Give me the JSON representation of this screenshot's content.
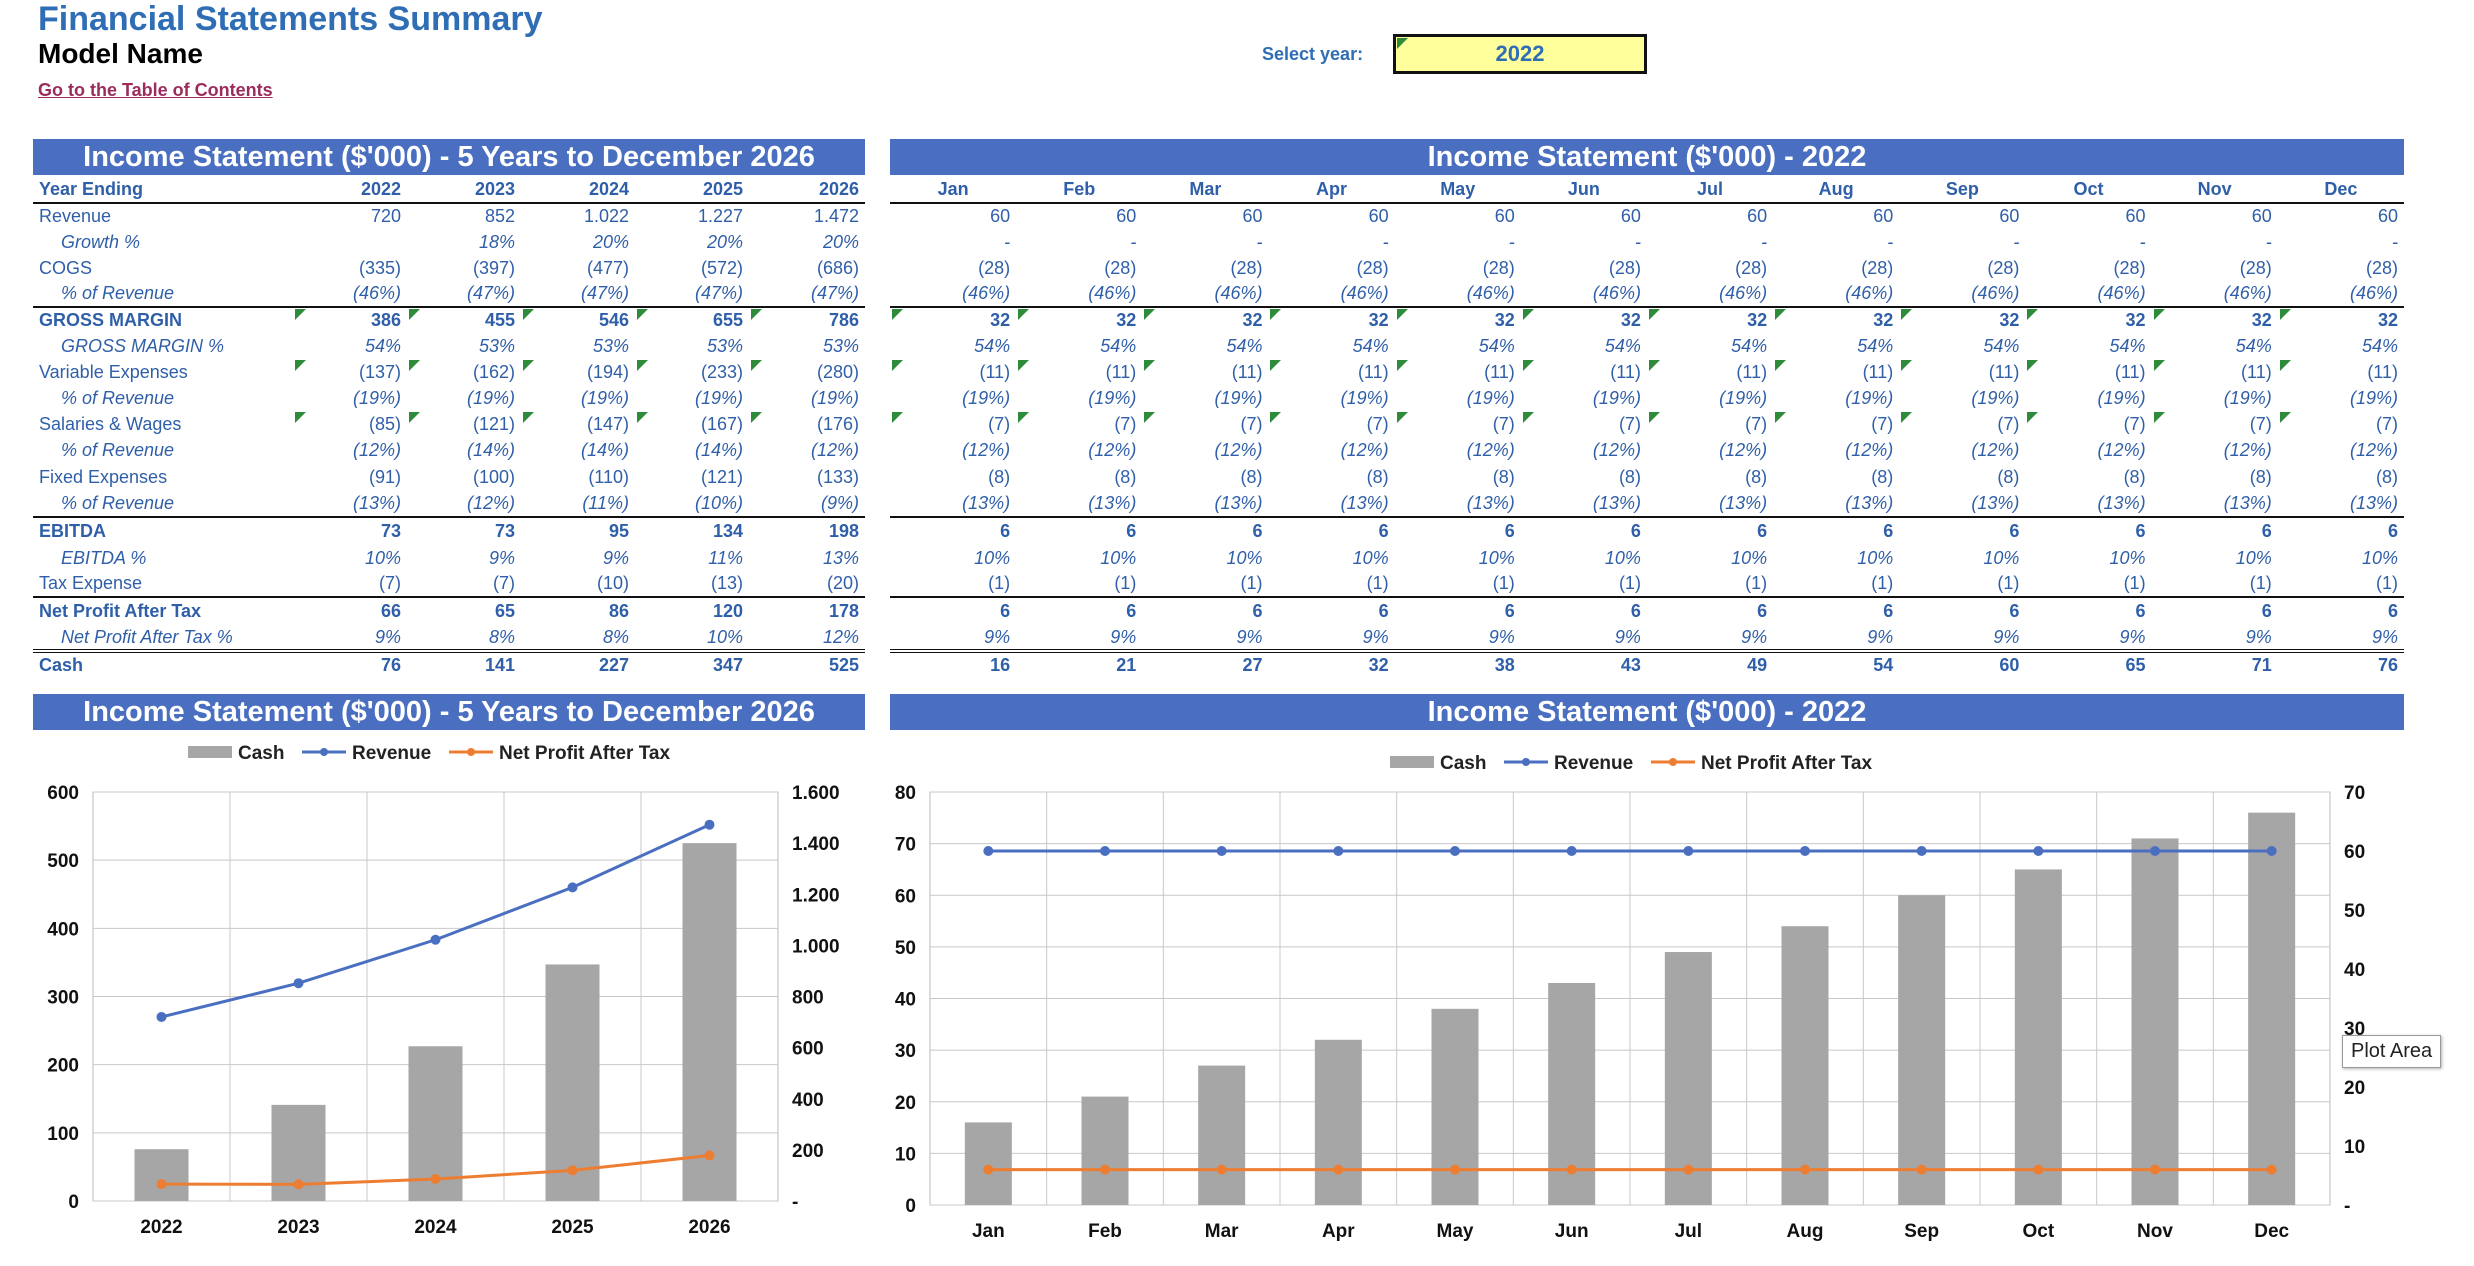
{
  "header": {
    "title": "Financial Statements Summary",
    "model_name": "Model Name",
    "toc_link": "Go to the Table of Contents",
    "year_label": "Select year:",
    "year_value": "2022"
  },
  "annual_table": {
    "title": "Income Statement ($'000) - 5 Years to December 2026",
    "columns": [
      "Year Ending",
      "2022",
      "2023",
      "2024",
      "2025",
      "2026"
    ],
    "rows": [
      {
        "label": "Revenue",
        "values": [
          "720",
          "852",
          "1.022",
          "1.227",
          "1.472"
        ],
        "style": "normal"
      },
      {
        "label": "Growth %",
        "values": [
          "",
          "18%",
          "20%",
          "20%",
          "20%"
        ],
        "style": "ital"
      },
      {
        "label": "COGS",
        "values": [
          "(335)",
          "(397)",
          "(477)",
          "(572)",
          "(686)"
        ],
        "style": "normal"
      },
      {
        "label": "% of Revenue",
        "values": [
          "(46%)",
          "(47%)",
          "(47%)",
          "(47%)",
          "(47%)"
        ],
        "style": "ital"
      },
      {
        "label": "GROSS MARGIN",
        "values": [
          "386",
          "455",
          "546",
          "655",
          "786"
        ],
        "style": "bold topline",
        "tri": true
      },
      {
        "label": "GROSS MARGIN %",
        "values": [
          "54%",
          "53%",
          "53%",
          "53%",
          "53%"
        ],
        "style": "ital"
      },
      {
        "label": "Variable Expenses",
        "values": [
          "(137)",
          "(162)",
          "(194)",
          "(233)",
          "(280)"
        ],
        "style": "normal",
        "tri": true
      },
      {
        "label": "% of Revenue",
        "values": [
          "(19%)",
          "(19%)",
          "(19%)",
          "(19%)",
          "(19%)"
        ],
        "style": "ital"
      },
      {
        "label": "Salaries & Wages",
        "values": [
          "(85)",
          "(121)",
          "(147)",
          "(167)",
          "(176)"
        ],
        "style": "normal",
        "tri": true
      },
      {
        "label": "% of Revenue",
        "values": [
          "(12%)",
          "(14%)",
          "(14%)",
          "(14%)",
          "(12%)"
        ],
        "style": "ital"
      },
      {
        "label": "Fixed Expenses",
        "values": [
          "(91)",
          "(100)",
          "(110)",
          "(121)",
          "(133)"
        ],
        "style": "normal tall"
      },
      {
        "label": "% of Revenue",
        "values": [
          "(13%)",
          "(12%)",
          "(11%)",
          "(10%)",
          "(9%)"
        ],
        "style": "ital"
      },
      {
        "label": "EBITDA",
        "values": [
          "73",
          "73",
          "95",
          "134",
          "198"
        ],
        "style": "bold topline tall"
      },
      {
        "label": "EBITDA %",
        "values": [
          "10%",
          "9%",
          "9%",
          "11%",
          "13%"
        ],
        "style": "ital"
      },
      {
        "label": "Tax Expense",
        "values": [
          "(7)",
          "(7)",
          "(10)",
          "(13)",
          "(20)"
        ],
        "style": "normal"
      },
      {
        "label": "Net Profit After Tax",
        "values": [
          "66",
          "65",
          "86",
          "120",
          "178"
        ],
        "style": "bold topline tall"
      },
      {
        "label": "Net Profit After Tax %",
        "values": [
          "9%",
          "8%",
          "8%",
          "10%",
          "12%"
        ],
        "style": "ital dbl"
      },
      {
        "label": "Cash",
        "values": [
          "76",
          "141",
          "227",
          "347",
          "525"
        ],
        "style": "bold"
      }
    ]
  },
  "monthly_table": {
    "title": "Income Statement ($'000) - 2022",
    "columns": [
      "Jan",
      "Feb",
      "Mar",
      "Apr",
      "May",
      "Jun",
      "Jul",
      "Aug",
      "Sep",
      "Oct",
      "Nov",
      "Dec"
    ],
    "rows": [
      {
        "value": "60",
        "style": "normal"
      },
      {
        "value": "-",
        "style": "ital"
      },
      {
        "value": "(28)",
        "style": "normal"
      },
      {
        "value": "(46%)",
        "style": "ital"
      },
      {
        "value": "32",
        "style": "bold topline",
        "tri": true
      },
      {
        "value": "54%",
        "style": "ital"
      },
      {
        "value": "(11)",
        "style": "normal",
        "tri": true
      },
      {
        "value": "(19%)",
        "style": "ital"
      },
      {
        "value": "(7)",
        "style": "normal",
        "tri": true
      },
      {
        "value": "(12%)",
        "style": "ital"
      },
      {
        "value": "(8)",
        "style": "normal tall"
      },
      {
        "value": "(13%)",
        "style": "ital"
      },
      {
        "value": "6",
        "style": "bold topline tall"
      },
      {
        "value": "10%",
        "style": "ital"
      },
      {
        "value": "(1)",
        "style": "normal"
      },
      {
        "value": "6",
        "style": "bold topline tall"
      },
      {
        "value": "9%",
        "style": "ital dbl"
      },
      {
        "cash": [
          "16",
          "21",
          "27",
          "32",
          "38",
          "43",
          "49",
          "54",
          "60",
          "65",
          "71",
          "76"
        ],
        "style": "bold"
      }
    ]
  },
  "colors": {
    "header_bar": "#4a6fc0",
    "text_blue": "#2f5fa8",
    "bar_gray": "#a6a6a6",
    "revenue_line": "#4a6fc0",
    "profit_line": "#ed7d31"
  },
  "chart_data": [
    {
      "type": "bar",
      "title": "Income Statement ($'000) - 5 Years to December 2026",
      "categories": [
        "2022",
        "2023",
        "2024",
        "2025",
        "2026"
      ],
      "series": [
        {
          "name": "Cash",
          "kind": "bar",
          "axis": "left",
          "values": [
            76,
            141,
            227,
            347,
            525
          ]
        },
        {
          "name": "Revenue",
          "kind": "line",
          "axis": "right",
          "values": [
            720,
            852,
            1022,
            1227,
            1472
          ]
        },
        {
          "name": "Net Profit After Tax",
          "kind": "line",
          "axis": "right",
          "values": [
            66,
            65,
            86,
            120,
            178
          ]
        }
      ],
      "left_axis": {
        "min": 0,
        "max": 600,
        "ticks": [
          "0",
          "100",
          "200",
          "300",
          "400",
          "500",
          "600"
        ]
      },
      "right_axis": {
        "min": 0,
        "max": 1600,
        "ticks": [
          "-",
          "200",
          "400",
          "600",
          "800",
          "1.000",
          "1.200",
          "1.400",
          "1.600"
        ]
      },
      "legend": "top",
      "grid": true
    },
    {
      "type": "bar",
      "title": "Income Statement ($'000) - 2022",
      "categories": [
        "Jan",
        "Feb",
        "Mar",
        "Apr",
        "May",
        "Jun",
        "Jul",
        "Aug",
        "Sep",
        "Oct",
        "Nov",
        "Dec"
      ],
      "series": [
        {
          "name": "Cash",
          "kind": "bar",
          "axis": "left",
          "values": [
            16,
            21,
            27,
            32,
            38,
            43,
            49,
            54,
            60,
            65,
            71,
            76
          ]
        },
        {
          "name": "Revenue",
          "kind": "line",
          "axis": "right",
          "values": [
            60,
            60,
            60,
            60,
            60,
            60,
            60,
            60,
            60,
            60,
            60,
            60
          ]
        },
        {
          "name": "Net Profit After Tax",
          "kind": "line",
          "axis": "right",
          "values": [
            6,
            6,
            6,
            6,
            6,
            6,
            6,
            6,
            6,
            6,
            6,
            6
          ]
        }
      ],
      "left_axis": {
        "min": 0,
        "max": 80,
        "ticks": [
          "0",
          "10",
          "20",
          "30",
          "40",
          "50",
          "60",
          "70",
          "80"
        ]
      },
      "right_axis": {
        "min": 0,
        "max": 70,
        "ticks": [
          "-",
          "10",
          "20",
          "30",
          "40",
          "50",
          "60",
          "70"
        ]
      },
      "legend": "top",
      "grid": true
    }
  ],
  "tooltip": "Plot Area"
}
